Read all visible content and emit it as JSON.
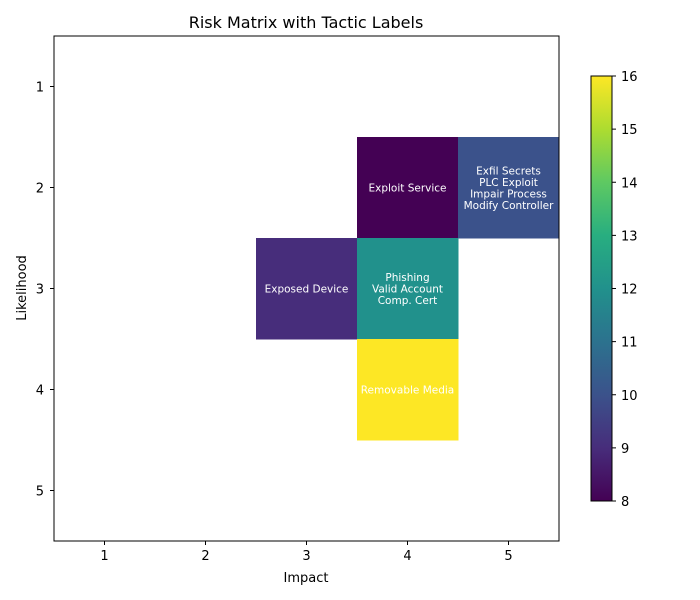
{
  "chart_data": {
    "type": "heatmap",
    "title": "Risk Matrix with Tactic Labels",
    "xlabel": "Impact",
    "ylabel": "Likelihood",
    "x_categories": [
      "1",
      "2",
      "3",
      "4",
      "5"
    ],
    "y_categories": [
      "1",
      "2",
      "3",
      "4",
      "5"
    ],
    "cells": [
      {
        "impact": 4,
        "likelihood": 2,
        "value": 8,
        "labels": [
          "Exploit Service"
        ]
      },
      {
        "impact": 5,
        "likelihood": 2,
        "value": 10,
        "labels": [
          "Exfil Secrets",
          "PLC Exploit",
          "Impair Process",
          "Modify Controller"
        ]
      },
      {
        "impact": 3,
        "likelihood": 3,
        "value": 9,
        "labels": [
          "Exposed Device"
        ]
      },
      {
        "impact": 4,
        "likelihood": 3,
        "value": 12,
        "labels": [
          "Phishing",
          "Valid Account",
          "Comp. Cert"
        ]
      },
      {
        "impact": 4,
        "likelihood": 4,
        "value": 16,
        "labels": [
          "Removable Media"
        ]
      }
    ],
    "colorbar": {
      "min": 8,
      "max": 16,
      "ticks": [
        8,
        9,
        10,
        11,
        12,
        13,
        14,
        15,
        16
      ],
      "colormap": "viridis"
    },
    "grid": false
  }
}
